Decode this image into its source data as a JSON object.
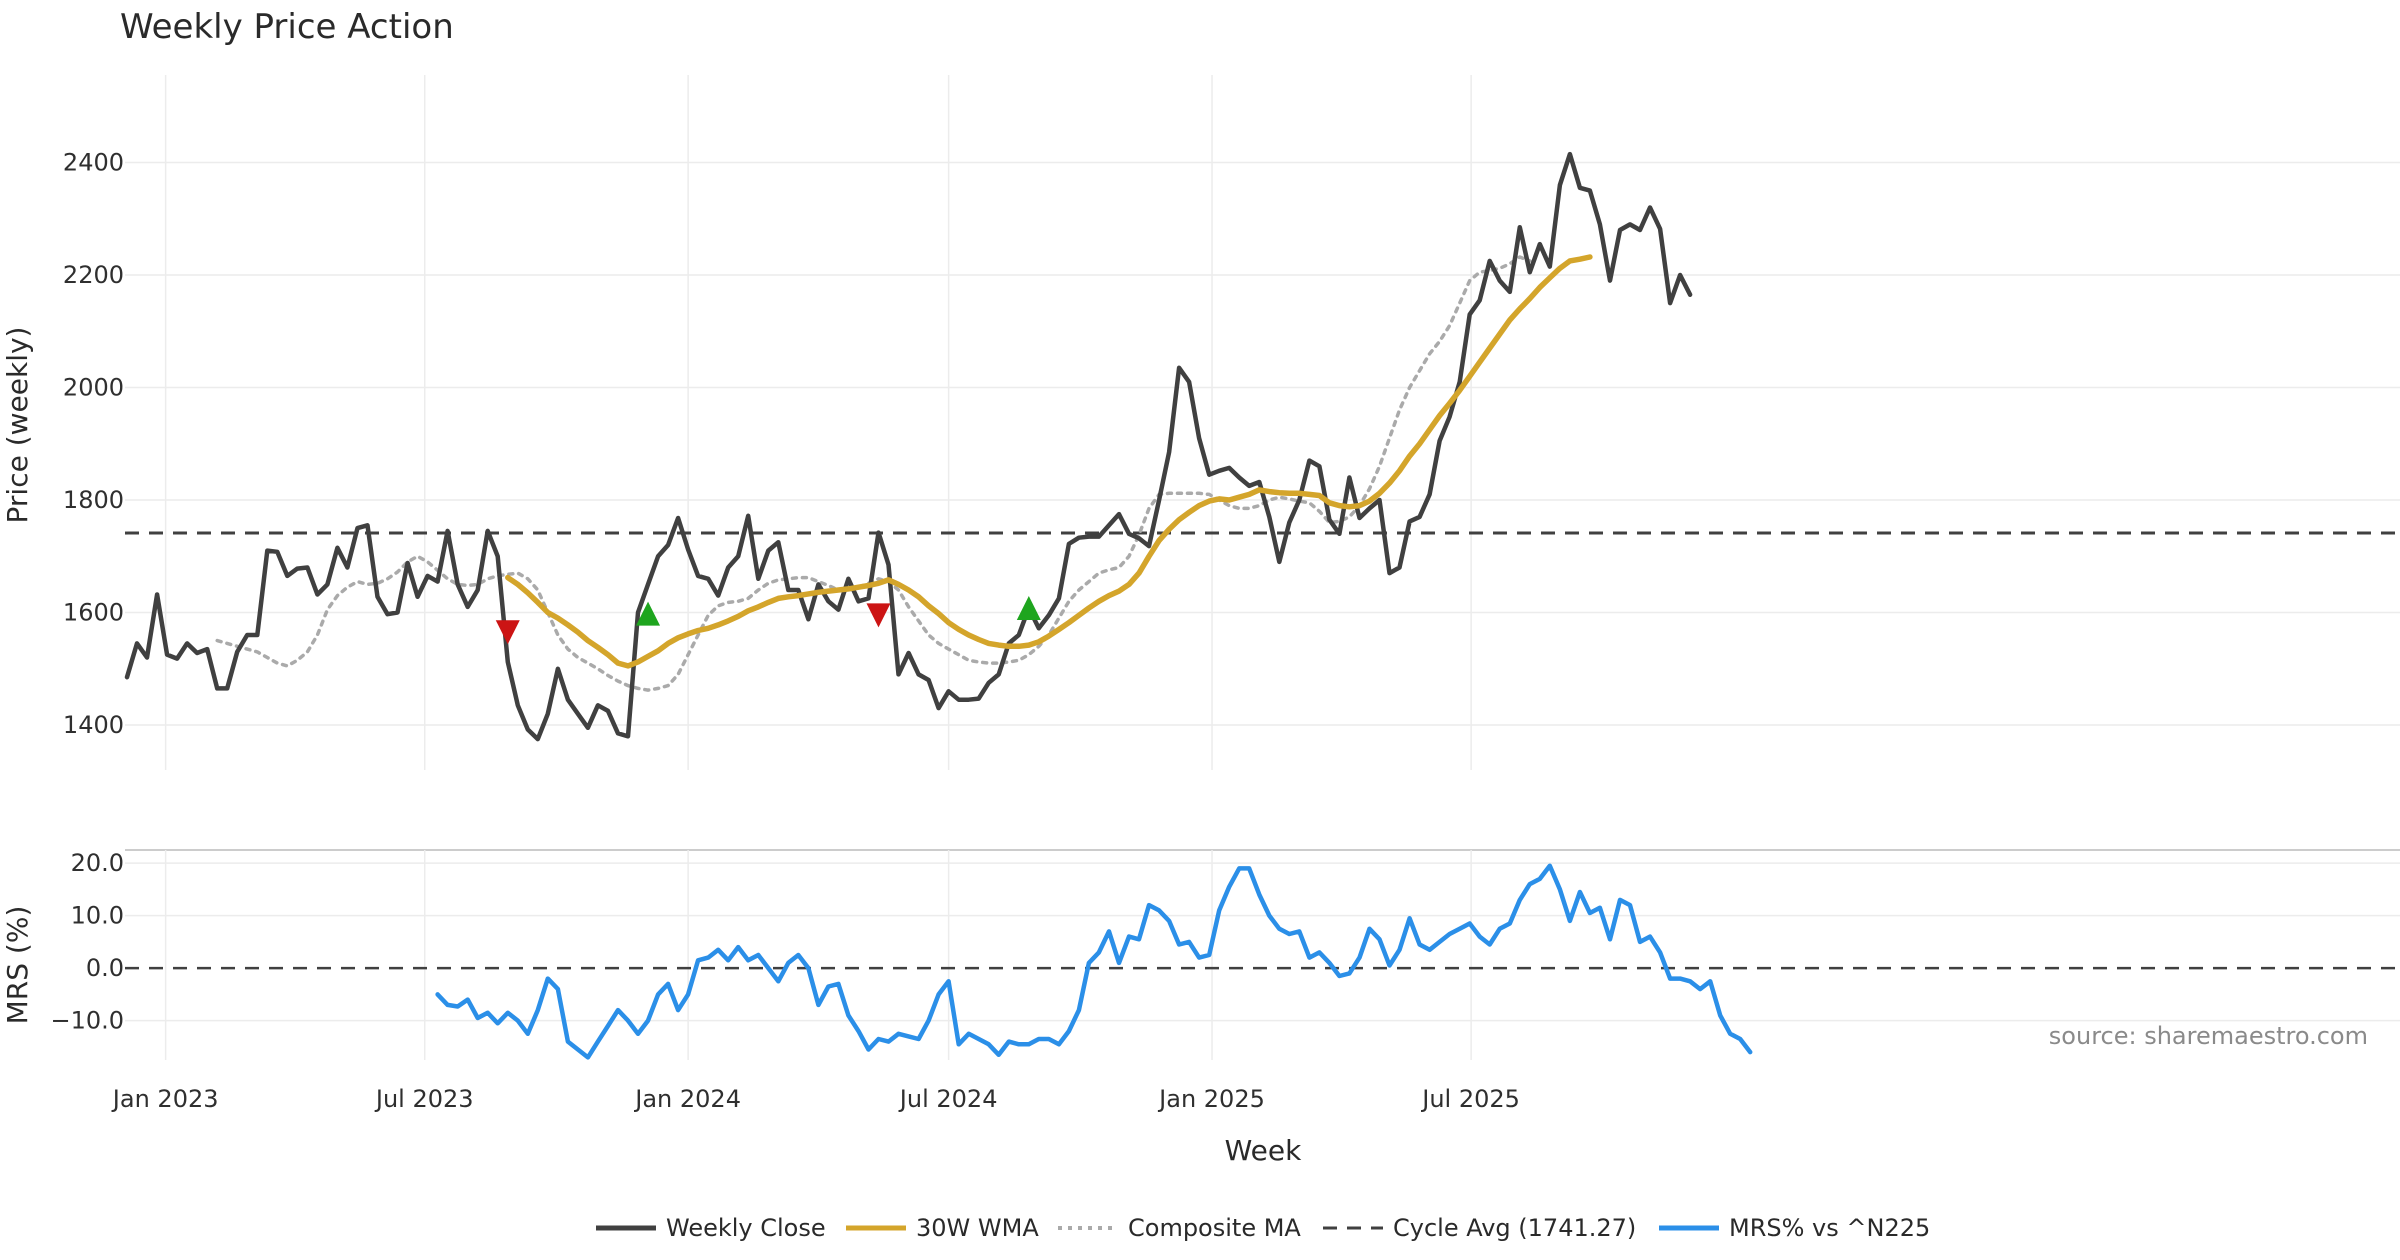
{
  "title": "Weekly Price Action",
  "source_text": "source: sharemaestro.com",
  "x_axis_title": "Week",
  "x_ticks": [
    "Jan 2023",
    "Jul 2023",
    "Jan 2024",
    "Jul 2024",
    "Jan 2025",
    "Jul 2025"
  ],
  "price_panel": {
    "ylabel": "Price (weekly)",
    "yticks": [
      1400,
      1600,
      1800,
      2000,
      2200,
      2400
    ],
    "ylim": [
      1320,
      2520
    ]
  },
  "mrs_panel": {
    "ylabel": "MRS (%)",
    "yticks": [
      "20.0",
      "10.0",
      "0.0",
      "−10.0"
    ],
    "ylim": [
      -17.5,
      22.5
    ]
  },
  "legend": [
    {
      "label": "Weekly Close",
      "color": "#404040",
      "style": "solid"
    },
    {
      "label": "30W WMA",
      "color": "#d4a52b",
      "style": "solid"
    },
    {
      "label": "Composite MA",
      "color": "#aaaaaa",
      "style": "dotted"
    },
    {
      "label": "Cycle Avg (1741.27)",
      "color": "#404040",
      "style": "dashed"
    },
    {
      "label": "MRS% vs ^N225",
      "color": "#2b8fe8",
      "style": "solid"
    }
  ],
  "chart_data": {
    "type": "line",
    "title": "Weekly Price Action",
    "xlabel": "Week",
    "ylabel": "Price (weekly)",
    "x_start": "2022-12-05",
    "x_step_weeks": 1,
    "cycle_avg": 1741.27,
    "series": [
      {
        "name": "Weekly Close",
        "start_index": 0,
        "values": [
          1485,
          1545,
          1520,
          1632,
          1525,
          1518,
          1545,
          1528,
          1535,
          1465,
          1465,
          1530,
          1560,
          1560,
          1710,
          1708,
          1665,
          1678,
          1680,
          1632,
          1650,
          1715,
          1680,
          1750,
          1755,
          1628,
          1597,
          1600,
          1688,
          1628,
          1665,
          1655,
          1745,
          1650,
          1610,
          1640,
          1745,
          1700,
          1512,
          1435,
          1392,
          1375,
          1420,
          1500,
          1445,
          1420,
          1395,
          1435,
          1425,
          1385,
          1380,
          1600,
          1650,
          1700,
          1720,
          1768,
          1712,
          1665,
          1660,
          1630,
          1680,
          1700,
          1772,
          1660,
          1710,
          1725,
          1640,
          1640,
          1588,
          1650,
          1620,
          1605,
          1660,
          1620,
          1625,
          1742,
          1685,
          1490,
          1528,
          1490,
          1480,
          1430,
          1460,
          1445,
          1445,
          1447,
          1475,
          1490,
          1545,
          1560,
          1608,
          1572,
          1595,
          1625,
          1722,
          1733,
          1735,
          1735,
          1755,
          1775,
          1740,
          1732,
          1718,
          1800,
          1885,
          2035,
          2010,
          1910,
          1845,
          1852,
          1857,
          1840,
          1825,
          1832,
          1770,
          1690,
          1760,
          1800,
          1870,
          1860,
          1765,
          1740,
          1840,
          1768,
          1785,
          1800,
          1670,
          1680,
          1762,
          1770,
          1810,
          1905,
          1948,
          2010,
          2130,
          2155,
          2225,
          2190,
          2170,
          2285,
          2205,
          2255,
          2215,
          2360,
          2415,
          2355,
          2350,
          2290,
          2190,
          2280,
          2290,
          2280,
          2320,
          2282,
          2150,
          2200,
          2165
        ]
      },
      {
        "name": "30W WMA",
        "start_index": 38,
        "values": [
          1662,
          1650,
          1635,
          1618,
          1600,
          1590,
          1578,
          1565,
          1550,
          1538,
          1525,
          1510,
          1505,
          1512,
          1522,
          1532,
          1545,
          1555,
          1562,
          1568,
          1572,
          1578,
          1585,
          1593,
          1603,
          1610,
          1618,
          1625,
          1628,
          1630,
          1633,
          1636,
          1638,
          1640,
          1642,
          1645,
          1648,
          1652,
          1658,
          1650,
          1640,
          1628,
          1612,
          1598,
          1582,
          1570,
          1560,
          1552,
          1545,
          1542,
          1540,
          1540,
          1542,
          1548,
          1558,
          1570,
          1582,
          1595,
          1608,
          1620,
          1630,
          1638,
          1650,
          1670,
          1700,
          1728,
          1748,
          1765,
          1778,
          1790,
          1798,
          1802,
          1800,
          1805,
          1810,
          1818,
          1815,
          1813,
          1812,
          1812,
          1810,
          1808,
          1795,
          1790,
          1788,
          1790,
          1798,
          1812,
          1830,
          1852,
          1878,
          1900,
          1925,
          1950,
          1972,
          1995,
          2020,
          2045,
          2070,
          2095,
          2120,
          2140,
          2158,
          2178,
          2195,
          2212,
          2225,
          2228,
          2232
        ]
      },
      {
        "name": "Composite MA",
        "start_index": 9,
        "values": [
          1550,
          1545,
          1540,
          1535,
          1530,
          1520,
          1510,
          1505,
          1515,
          1530,
          1560,
          1605,
          1630,
          1645,
          1655,
          1650,
          1652,
          1660,
          1672,
          1690,
          1700,
          1690,
          1675,
          1660,
          1650,
          1648,
          1650,
          1660,
          1665,
          1668,
          1670,
          1660,
          1640,
          1600,
          1560,
          1535,
          1520,
          1510,
          1500,
          1488,
          1478,
          1470,
          1465,
          1462,
          1465,
          1470,
          1490,
          1525,
          1560,
          1595,
          1612,
          1618,
          1620,
          1625,
          1640,
          1652,
          1658,
          1660,
          1662,
          1662,
          1655,
          1648,
          1640,
          1640,
          1645,
          1652,
          1660,
          1655,
          1640,
          1610,
          1585,
          1560,
          1545,
          1535,
          1525,
          1515,
          1512,
          1510,
          1510,
          1512,
          1515,
          1525,
          1540,
          1560,
          1590,
          1620,
          1640,
          1655,
          1670,
          1676,
          1680,
          1700,
          1738,
          1785,
          1810,
          1812,
          1812,
          1812,
          1812,
          1810,
          1800,
          1790,
          1785,
          1785,
          1790,
          1800,
          1805,
          1802,
          1798,
          1795,
          1780,
          1760,
          1762,
          1770,
          1790,
          1820,
          1860,
          1910,
          1960,
          2000,
          2030,
          2060,
          2082,
          2110,
          2150,
          2190,
          2205,
          2208,
          2212,
          2220,
          2232,
          2225
        ]
      },
      {
        "name": "MRS% vs ^N225",
        "start_index": 31,
        "values": [
          -5,
          -7,
          -7.3,
          -6,
          -9.5,
          -8.5,
          -10.5,
          -8.5,
          -10,
          -12.5,
          -8,
          -2,
          -4,
          -14,
          -15.5,
          -17,
          -14,
          -11,
          -8,
          -10,
          -12.5,
          -10,
          -5,
          -3,
          -8,
          -5,
          1.5,
          2,
          3.5,
          1.5,
          4,
          1.5,
          2.5,
          0,
          -2.5,
          1,
          2.5,
          0,
          -7,
          -3.5,
          -3,
          -9,
          -12,
          -15.5,
          -13.5,
          -14,
          -12.5,
          -13,
          -13.5,
          -10,
          -5,
          -2.5,
          -14.5,
          -12.5,
          -13.5,
          -14.5,
          -16.5,
          -14,
          -14.5,
          -14.5,
          -13.5,
          -13.5,
          -14.5,
          -12,
          -8,
          1,
          3,
          7,
          1,
          6,
          5.5,
          12,
          11,
          9,
          4.5,
          5,
          2,
          2.5,
          11,
          15.5,
          19,
          19,
          14,
          10,
          7.5,
          6.5,
          7,
          2,
          3,
          1,
          -1.5,
          -1,
          2,
          7.5,
          5.5,
          0.5,
          3.5,
          9.5,
          4.5,
          3.5,
          5,
          6.5,
          7.5,
          8.5,
          6,
          4.5,
          7.5,
          8.5,
          13,
          16,
          17,
          19.5,
          15,
          9,
          14.5,
          10.5,
          11.5,
          5.5,
          13,
          12,
          5,
          6,
          3,
          -2,
          -2,
          -2.5,
          -4,
          -2.5,
          -9,
          -12.5,
          -13.5,
          -16
        ]
      }
    ]
  }
}
